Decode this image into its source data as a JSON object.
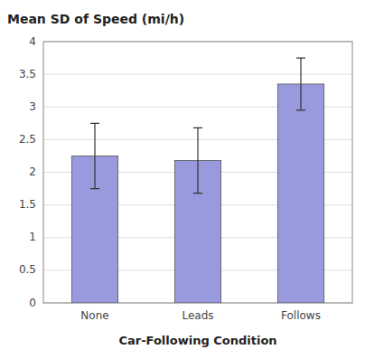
{
  "chart_data": {
    "type": "bar",
    "title": "Mean SD of Speed (mi/h)",
    "xlabel": "Car-Following Condition",
    "categories": [
      "None",
      "Leads",
      "Follows"
    ],
    "values": [
      2.25,
      2.18,
      3.35
    ],
    "errors": [
      0.5,
      0.5,
      0.4
    ],
    "color": "#9999dd",
    "ylim": [
      0,
      4
    ],
    "yticks": [
      0,
      0.5,
      1,
      1.5,
      2,
      2.5,
      3,
      3.5,
      4
    ],
    "grid": true
  }
}
